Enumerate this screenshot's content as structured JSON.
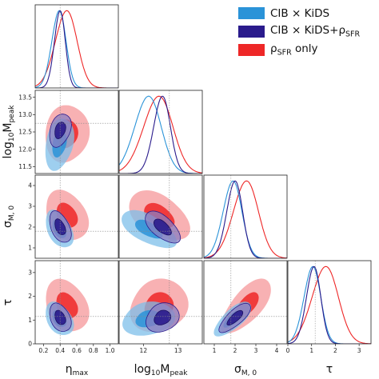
{
  "chart_data": {
    "type": "corner",
    "parameters": [
      {
        "key": "eta",
        "label": "η",
        "sub": "max",
        "range": [
          0.1,
          1.1
        ],
        "ticks": [
          "0.2",
          "0.4",
          "0.6",
          "0.8",
          "1.0"
        ],
        "tick_values": [
          0.2,
          0.4,
          0.6,
          0.8,
          1.0
        ]
      },
      {
        "key": "logM",
        "label": "log",
        "sub": "10",
        "label2": "M",
        "sub2": "peak",
        "range": [
          11.3,
          13.7
        ],
        "ticks": [
          "12",
          "13"
        ],
        "tick_values": [
          12,
          13
        ],
        "y_ticks": [
          "11.5",
          "12.0",
          "12.5",
          "13.0",
          "13.5"
        ],
        "y_tick_values": [
          11.5,
          12.0,
          12.5,
          13.0,
          13.5
        ]
      },
      {
        "key": "sigma",
        "label": "σ",
        "sub": "M, 0",
        "range": [
          0.5,
          4.5
        ],
        "ticks": [
          "1",
          "2",
          "3",
          "4"
        ],
        "tick_values": [
          1,
          2,
          3,
          4
        ]
      },
      {
        "key": "tau",
        "label": "τ",
        "sub": "",
        "range": [
          0.0,
          3.5
        ],
        "ticks": [
          "0",
          "1",
          "2",
          "3"
        ],
        "tick_values": [
          0,
          1,
          2,
          3
        ]
      }
    ],
    "series": [
      {
        "name": "CIB × KiDS",
        "color": "#2a93d8",
        "mean": [
          0.39,
          12.15,
          1.9,
          1.05
        ],
        "sd": [
          0.085,
          0.38,
          0.45,
          0.35
        ],
        "corr": {
          "0-1": 0.25,
          "0-2": -0.45,
          "0-3": -0.35,
          "1-2": -0.55,
          "1-3": 0.1,
          "2-3": 0.7
        }
      },
      {
        "name": "CIB × KiDS+ρ_SFR",
        "color": "#2a1b8c",
        "mean": [
          0.4,
          12.55,
          2.0,
          1.1
        ],
        "sd": [
          0.065,
          0.24,
          0.38,
          0.3
        ],
        "corr": {
          "0-1": 0.3,
          "0-2": -0.45,
          "0-3": -0.35,
          "1-2": -0.55,
          "1-3": 0.1,
          "2-3": 0.75
        }
      },
      {
        "name": "ρ_SFR only",
        "color": "#ee2727",
        "mean": [
          0.48,
          12.45,
          2.55,
          1.6
        ],
        "sd": [
          0.13,
          0.42,
          0.6,
          0.55
        ],
        "corr": {
          "0-1": 0.05,
          "0-2": -0.3,
          "0-3": -0.25,
          "1-2": -0.4,
          "1-3": 0.05,
          "2-3": 0.65
        }
      }
    ],
    "reference": [
      0.4,
      12.75,
      1.8,
      1.15
    ],
    "grid": false,
    "legend_position": "top-right"
  },
  "legend": {
    "items": [
      {
        "text": "CIB × KiDS",
        "sub": "",
        "color": "#2a93d8"
      },
      {
        "text": "CIB × KiDS+ρ",
        "sub": "SFR",
        "color": "#2a1b8c"
      },
      {
        "text": "ρ",
        "sub": "SFR",
        "tail": " only",
        "color": "#ee2727"
      }
    ]
  }
}
